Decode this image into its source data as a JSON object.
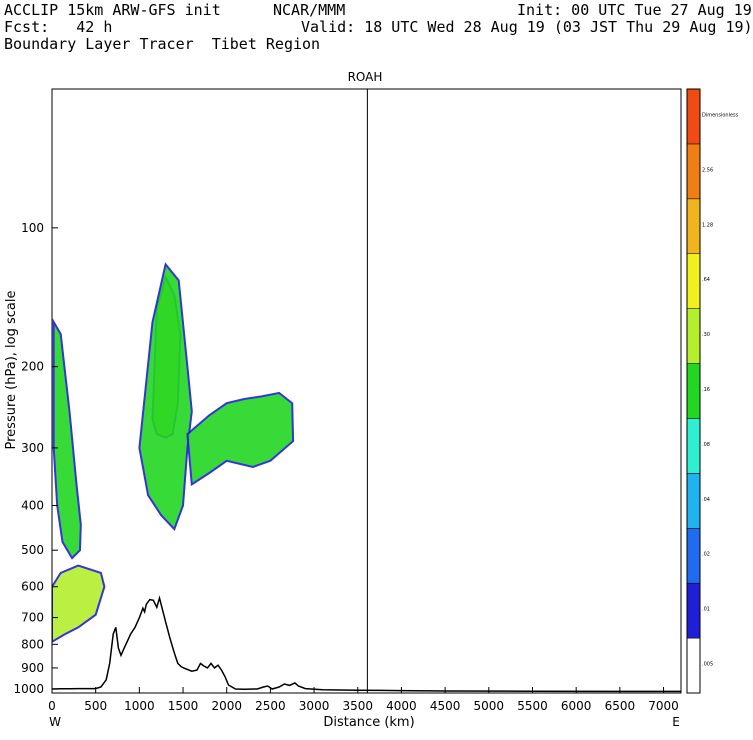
{
  "header": {
    "line1_left": "ACCLIP 15km ARW-GFS init",
    "line1_center": "NCAR/MMM",
    "line1_right": "Init: 00 UTC Tue 27 Aug 19",
    "line2_left": "Fcst:   42 h",
    "line2_right": "Valid: 18 UTC Wed 28 Aug 19 (03 JST Thu 29 Aug 19)",
    "line3_left": "Boundary Layer Tracer  Tibet Region"
  },
  "chart_data": {
    "type": "heatmap",
    "title": "ROAH",
    "xlabel": "Distance (km)",
    "ylabel": "Pressure (hPa), log scale",
    "x_end_labels": {
      "left": "W",
      "right": "E"
    },
    "x_ticks": [
      0,
      500,
      1000,
      1500,
      2000,
      2500,
      3000,
      3500,
      4000,
      4500,
      5000,
      5500,
      6000,
      6500,
      7000
    ],
    "xlim": [
      0,
      7200
    ],
    "y_ticks": [
      100,
      200,
      300,
      400,
      500,
      600,
      700,
      800,
      900,
      1000
    ],
    "ylim_hpa": [
      1020,
      50
    ],
    "y_scale": "log",
    "station_marker_km": 3610,
    "colorbar": {
      "levels": [
        ".005",
        ".01",
        ".02",
        ".04",
        ".08",
        ".16",
        ".30",
        ".64",
        "1.28",
        "2.56",
        "Dimensionless"
      ],
      "colors": [
        "#ffffff",
        "#1f1fd6",
        "#1f6cf0",
        "#1fb4f0",
        "#2ef0d0",
        "#22d622",
        "#b4ef2e",
        "#f0f01e",
        "#f0b41e",
        "#f07e12",
        "#f04b12"
      ]
    },
    "terrain_km_hpa": [
      [
        0,
        1000
      ],
      [
        100,
        999
      ],
      [
        200,
        999
      ],
      [
        300,
        998
      ],
      [
        400,
        998
      ],
      [
        500,
        998
      ],
      [
        560,
        990
      ],
      [
        620,
        955
      ],
      [
        660,
        880
      ],
      [
        700,
        760
      ],
      [
        730,
        735
      ],
      [
        760,
        815
      ],
      [
        790,
        845
      ],
      [
        820,
        820
      ],
      [
        860,
        790
      ],
      [
        900,
        760
      ],
      [
        950,
        735
      ],
      [
        1000,
        700
      ],
      [
        1040,
        668
      ],
      [
        1060,
        680
      ],
      [
        1080,
        655
      ],
      [
        1120,
        640
      ],
      [
        1160,
        642
      ],
      [
        1200,
        665
      ],
      [
        1230,
        635
      ],
      [
        1260,
        668
      ],
      [
        1300,
        715
      ],
      [
        1350,
        775
      ],
      [
        1400,
        835
      ],
      [
        1440,
        880
      ],
      [
        1480,
        895
      ],
      [
        1520,
        902
      ],
      [
        1600,
        915
      ],
      [
        1660,
        910
      ],
      [
        1700,
        880
      ],
      [
        1740,
        892
      ],
      [
        1780,
        900
      ],
      [
        1820,
        880
      ],
      [
        1860,
        900
      ],
      [
        1900,
        888
      ],
      [
        1940,
        910
      ],
      [
        1980,
        940
      ],
      [
        2020,
        980
      ],
      [
        2100,
        1000
      ],
      [
        2200,
        1001
      ],
      [
        2350,
        1000
      ],
      [
        2420,
        990
      ],
      [
        2470,
        985
      ],
      [
        2520,
        1000
      ],
      [
        2600,
        990
      ],
      [
        2660,
        975
      ],
      [
        2720,
        982
      ],
      [
        2780,
        970
      ],
      [
        2820,
        985
      ],
      [
        2900,
        998
      ],
      [
        3100,
        1004
      ],
      [
        3500,
        1006
      ],
      [
        4000,
        1008
      ],
      [
        4500,
        1010
      ],
      [
        5500,
        1011
      ],
      [
        6500,
        1012
      ],
      [
        7200,
        1012
      ]
    ],
    "tracer_plumes": [
      {
        "level": ".30",
        "points": [
          [
            1150,
            260
          ],
          [
            1200,
            150
          ],
          [
            1300,
            128
          ],
          [
            1400,
            140
          ],
          [
            1470,
            170
          ],
          [
            1440,
            240
          ],
          [
            1380,
            280
          ],
          [
            1300,
            285
          ],
          [
            1200,
            280
          ]
        ]
      },
      {
        "level": ".30",
        "points": [
          [
            0,
            790
          ],
          [
            150,
            760
          ],
          [
            300,
            735
          ],
          [
            500,
            690
          ],
          [
            600,
            600
          ],
          [
            560,
            560
          ],
          [
            300,
            540
          ],
          [
            100,
            560
          ],
          [
            0,
            600
          ]
        ]
      },
      {
        "level": ".16",
        "points": [
          [
            20,
            160
          ],
          [
            100,
            170
          ],
          [
            200,
            250
          ],
          [
            280,
            360
          ],
          [
            330,
            440
          ],
          [
            320,
            500
          ],
          [
            230,
            520
          ],
          [
            120,
            480
          ],
          [
            60,
            400
          ],
          [
            20,
            300
          ]
        ]
      },
      {
        "level": ".16",
        "points": [
          [
            1000,
            300
          ],
          [
            1150,
            160
          ],
          [
            1300,
            120
          ],
          [
            1450,
            130
          ],
          [
            1550,
            200
          ],
          [
            1600,
            250
          ],
          [
            1550,
            300
          ],
          [
            1500,
            400
          ],
          [
            1400,
            450
          ],
          [
            1250,
            420
          ],
          [
            1100,
            380
          ]
        ]
      },
      {
        "level": ".16",
        "points": [
          [
            1550,
            280
          ],
          [
            1800,
            255
          ],
          [
            2000,
            240
          ],
          [
            2200,
            235
          ],
          [
            2400,
            232
          ],
          [
            2600,
            228
          ],
          [
            2750,
            240
          ],
          [
            2760,
            290
          ],
          [
            2500,
            320
          ],
          [
            2300,
            330
          ],
          [
            2000,
            320
          ],
          [
            1800,
            340
          ],
          [
            1600,
            360
          ]
        ]
      }
    ]
  }
}
